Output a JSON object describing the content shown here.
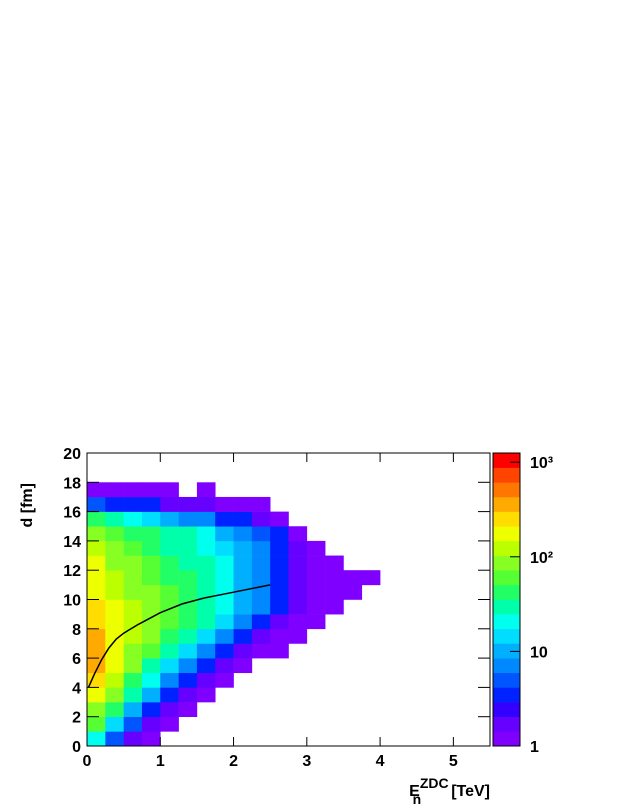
{
  "chart_data": {
    "type": "heatmap",
    "x_label": {
      "base": "E",
      "sub": "n",
      "sup": "ZDC",
      "unit": "[TeV]"
    },
    "y_label": "d [fm]",
    "xlim": [
      0,
      5.5
    ],
    "xticks": [
      0,
      1,
      2,
      3,
      4,
      5
    ],
    "ylim": [
      0,
      20
    ],
    "yticks": [
      0,
      2,
      4,
      6,
      8,
      10,
      12,
      14,
      16,
      18,
      20
    ],
    "zlim": [
      1,
      1250
    ],
    "zlog": true,
    "zticks": [
      1,
      10,
      {
        "value": 100,
        "label": "10²"
      },
      {
        "value": 1000,
        "label": "10³"
      }
    ],
    "palette": [
      "#7f00ff",
      "#6600ff",
      "#3300ff",
      "#0022ff",
      "#0055ff",
      "#0088ff",
      "#00b0ff",
      "#00ddff",
      "#00ffee",
      "#00ffaa",
      "#22ff66",
      "#55ff33",
      "#88ff22",
      "#bbff00",
      "#eeff00",
      "#ffdd00",
      "#ffaa00",
      "#ff7700",
      "#ff4400",
      "#ff0000"
    ],
    "xbins": [
      0,
      0.25,
      0.5,
      0.75,
      1,
      1.25,
      1.5,
      1.75,
      2,
      2.25,
      2.5,
      2.75,
      3,
      3.25,
      3.5,
      3.75,
      4,
      4.25,
      4.5
    ],
    "ybins": [
      0,
      1,
      2,
      3,
      4,
      5,
      6,
      7,
      8,
      9,
      10,
      11,
      12,
      13,
      14,
      15,
      16,
      17,
      18
    ],
    "z": [
      [
        20,
        5,
        2,
        1,
        null,
        null,
        null,
        null,
        null,
        null,
        null,
        null,
        null,
        null,
        null,
        null,
        null,
        null
      ],
      [
        60,
        15,
        5,
        2,
        1,
        null,
        null,
        null,
        null,
        null,
        null,
        null,
        null,
        null,
        null,
        null,
        null,
        null
      ],
      [
        100,
        40,
        12,
        4,
        2,
        1,
        null,
        null,
        null,
        null,
        null,
        null,
        null,
        null,
        null,
        null,
        null,
        null
      ],
      [
        200,
        80,
        30,
        10,
        4,
        2,
        1,
        null,
        null,
        null,
        null,
        null,
        null,
        null,
        null,
        null,
        null,
        null
      ],
      [
        300,
        120,
        50,
        20,
        8,
        3,
        2,
        1,
        null,
        null,
        null,
        null,
        null,
        null,
        null,
        null,
        null,
        null
      ],
      [
        400,
        150,
        80,
        35,
        15,
        6,
        3,
        2,
        1,
        null,
        null,
        null,
        null,
        null,
        null,
        null,
        null,
        null
      ],
      [
        400,
        180,
        100,
        60,
        30,
        15,
        8,
        4,
        2,
        1,
        1,
        null,
        null,
        null,
        null,
        null,
        null,
        null
      ],
      [
        350,
        180,
        120,
        80,
        50,
        30,
        15,
        8,
        4,
        2,
        1,
        1,
        null,
        null,
        null,
        null,
        null,
        null
      ],
      [
        300,
        170,
        120,
        90,
        60,
        40,
        25,
        15,
        8,
        4,
        2,
        1,
        1,
        null,
        null,
        null,
        null,
        null
      ],
      [
        250,
        150,
        110,
        90,
        60,
        45,
        30,
        20,
        12,
        6,
        3,
        2,
        1,
        1,
        null,
        null,
        null,
        null
      ],
      [
        200,
        130,
        100,
        80,
        60,
        45,
        30,
        20,
        12,
        8,
        4,
        2,
        1,
        1,
        1,
        null,
        null,
        null
      ],
      [
        170,
        110,
        90,
        70,
        50,
        40,
        30,
        20,
        12,
        8,
        4,
        2,
        1,
        1,
        1,
        1,
        null,
        null
      ],
      [
        150,
        100,
        80,
        60,
        45,
        35,
        25,
        18,
        12,
        7,
        4,
        2,
        1,
        1,
        null,
        null,
        null,
        null
      ],
      [
        120,
        80,
        60,
        45,
        35,
        25,
        20,
        15,
        10,
        6,
        3,
        2,
        1,
        null,
        null,
        null,
        null,
        null
      ],
      [
        100,
        70,
        50,
        40,
        30,
        25,
        18,
        12,
        8,
        5,
        3,
        1,
        null,
        null,
        null,
        null,
        null,
        null
      ],
      [
        40,
        25,
        18,
        14,
        10,
        8,
        6,
        4,
        3,
        2,
        1,
        null,
        null,
        null,
        null,
        null,
        null,
        null
      ],
      [
        5,
        4,
        3,
        3,
        2,
        2,
        2,
        1,
        1,
        1,
        null,
        null,
        null,
        null,
        null,
        null,
        null,
        null
      ],
      [
        1,
        1,
        1,
        1,
        1,
        null,
        1,
        null,
        null,
        null,
        null,
        null,
        null,
        null,
        null,
        null,
        null,
        null
      ]
    ],
    "line": {
      "color": "#000000",
      "x": [
        0.02,
        0.1,
        0.2,
        0.3,
        0.4,
        0.5,
        0.7,
        1.0,
        1.3,
        1.6,
        2.0,
        2.5
      ],
      "y": [
        4.0,
        4.9,
        5.9,
        6.7,
        7.3,
        7.7,
        8.3,
        9.1,
        9.7,
        10.1,
        10.5,
        11.0
      ]
    }
  }
}
